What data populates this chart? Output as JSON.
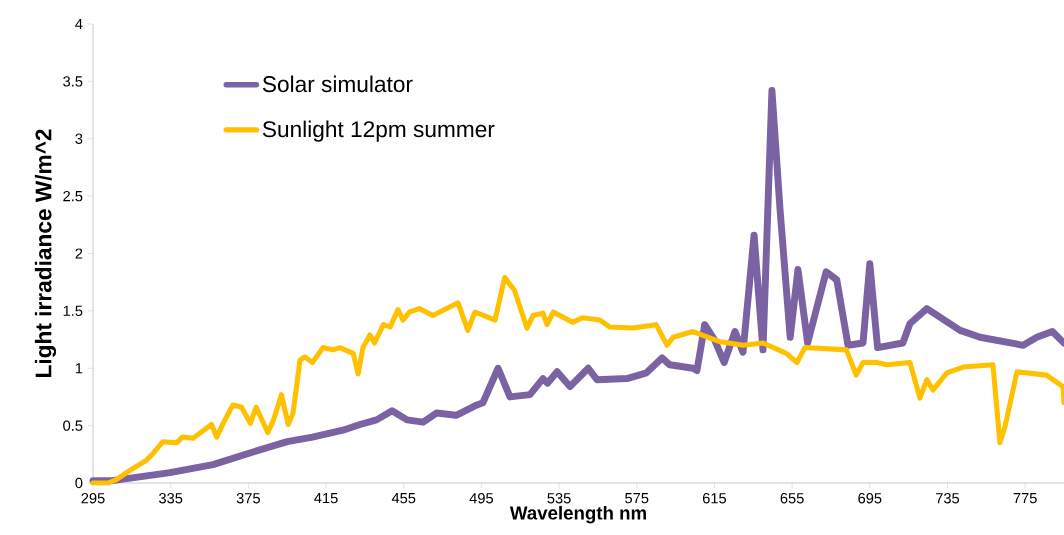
{
  "chart_data": {
    "type": "line",
    "xlabel": "Wavelength nm",
    "ylabel": "Light irradiance W/m^2",
    "xlim": [
      295,
      795
    ],
    "ylim": [
      0,
      4
    ],
    "xticks": [
      295,
      335,
      375,
      415,
      455,
      495,
      535,
      575,
      615,
      655,
      695,
      735,
      775
    ],
    "yticks": [
      0,
      0.5,
      1,
      1.5,
      2,
      2.5,
      3,
      3.5,
      4
    ],
    "grid": false,
    "legend": "top left",
    "marker": "none",
    "line_style": "solid",
    "series": [
      {
        "name": "Solar simulator",
        "color": "#7b62a3",
        "x": [
          295,
          305,
          334.6,
          356.8,
          377.4,
          395,
          408,
          423.7,
          432.5,
          441,
          449,
          456.7,
          465,
          472,
          482,
          492.7,
          495.8,
          503.6,
          509.7,
          520,
          526.7,
          529,
          534,
          540.6,
          550,
          554.5,
          570,
          580,
          588,
          592,
          604,
          606,
          610,
          615,
          620,
          625.6,
          629.7,
          635.4,
          640,
          644.6,
          648.8,
          654,
          658,
          663,
          672.5,
          678,
          683.8,
          691.5,
          695,
          699,
          712,
          715.7,
          724.4,
          741.5,
          751.8,
          774,
          781,
          789,
          795
        ],
        "values": [
          0.02,
          0.02,
          0.09,
          0.16,
          0.27,
          0.36,
          0.4,
          0.46,
          0.51,
          0.55,
          0.63,
          0.55,
          0.53,
          0.61,
          0.59,
          0.68,
          0.7,
          1.0,
          0.75,
          0.77,
          0.91,
          0.87,
          0.97,
          0.84,
          1.0,
          0.9,
          0.91,
          0.96,
          1.09,
          1.03,
          1.0,
          0.98,
          1.38,
          1.25,
          1.05,
          1.32,
          1.14,
          2.16,
          1.16,
          3.42,
          2.38,
          1.27,
          1.86,
          1.22,
          1.84,
          1.77,
          1.2,
          1.22,
          1.91,
          1.18,
          1.22,
          1.39,
          1.52,
          1.33,
          1.27,
          1.2,
          1.27,
          1.32,
          1.22
        ]
      },
      {
        "name": "Sunlight 12pm summer",
        "color": "#ffc000",
        "x": [
          295,
          302.7,
          307,
          314,
          322.6,
          326,
          331,
          338,
          341,
          346.5,
          356,
          358.7,
          362,
          367,
          371.5,
          376,
          379,
          385,
          388,
          392,
          395.5,
          398,
          401.6,
          404,
          408,
          413.4,
          418.6,
          422,
          429,
          431.5,
          434,
          437.6,
          440,
          444.5,
          448,
          452,
          454.6,
          458,
          463,
          470,
          483,
          488,
          491.7,
          502,
          507,
          512,
          518.5,
          521.6,
          526.7,
          528.8,
          532,
          542,
          547,
          556,
          561,
          573,
          585,
          590.6,
          593.7,
          604,
          618,
          630,
          640,
          652,
          657.5,
          661.6,
          683,
          688,
          691.5,
          698.6,
          703.8,
          715.7,
          720.8,
          724.4,
          727.5,
          734.7,
          743,
          758.4,
          762,
          764.6,
          770.8,
          786,
          794.5,
          795
        ],
        "values": [
          0,
          0,
          0.03,
          0.11,
          0.2,
          0.26,
          0.36,
          0.35,
          0.4,
          0.39,
          0.51,
          0.4,
          0.52,
          0.68,
          0.66,
          0.52,
          0.66,
          0.44,
          0.55,
          0.77,
          0.51,
          0.61,
          1.07,
          1.1,
          1.05,
          1.18,
          1.16,
          1.18,
          1.13,
          0.95,
          1.18,
          1.29,
          1.22,
          1.38,
          1.36,
          1.51,
          1.42,
          1.49,
          1.52,
          1.46,
          1.57,
          1.33,
          1.49,
          1.42,
          1.79,
          1.68,
          1.35,
          1.46,
          1.48,
          1.38,
          1.49,
          1.4,
          1.44,
          1.42,
          1.36,
          1.35,
          1.38,
          1.2,
          1.27,
          1.32,
          1.23,
          1.2,
          1.22,
          1.13,
          1.05,
          1.18,
          1.16,
          0.94,
          1.05,
          1.05,
          1.03,
          1.05,
          0.74,
          0.9,
          0.81,
          0.96,
          1.01,
          1.03,
          0.35,
          0.49,
          0.97,
          0.94,
          0.84,
          0.7
        ]
      }
    ]
  }
}
